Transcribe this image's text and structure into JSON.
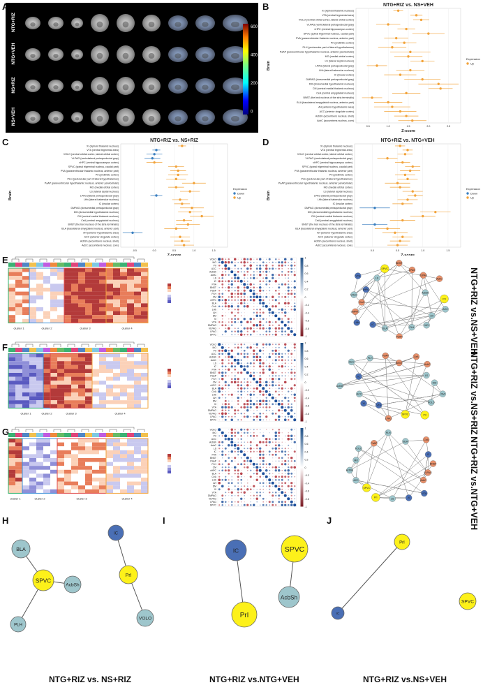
{
  "labels": {
    "A": "A",
    "B": "B",
    "C": "C",
    "D": "D",
    "E": "E",
    "F": "F",
    "G": "G",
    "H": "H",
    "I": "I",
    "J": "J"
  },
  "panelA": {
    "rows": [
      "NTG+RIZ",
      "NTG+VEH",
      "NS+RIZ",
      "NS+VEH"
    ],
    "colorbar_ticks": [
      "600",
      "400",
      "200",
      "0"
    ]
  },
  "forest": {
    "ylabel": "Brain",
    "xlabel": "Z-score",
    "legend_title": "Expression",
    "legend_down": "Down",
    "legend_up": "Up",
    "regions": [
      "XI (xiphoid thalamic nucleus)",
      "VTA (ventral tegmental area)",
      "VOLO (ventral orbital cortex, lateral orbital cortex)",
      "VLPAG (ventrolateral periaqueductal gray)",
      "vHPC (ventral hippocampus cortex)",
      "SPVC (spinal trigeminal nucleus, caudal part)",
      "PVA (paraventricular thalamic nucleus, anterior part)",
      "PrI (prelimbic cortex)",
      "PLH (peduncular part of lateral hypothalamus)",
      "PaAP (paraventricular hypothalamic nucleus, anterior parvicellular)",
      "MO (medial orbital cortex)",
      "LS (lateral septal nucleus)",
      "LPAG (lateral periaqueductal gray)",
      "LHb (lateral habenular nucleus)",
      "IC (insular cortex)",
      "DMPAG (dorsomedial periaqueductal gray)",
      "DM (dorsomedial hypothalamic nucleus)",
      "CM (central medial thalamic nucleus)",
      "CeA (central amygdaloid nucleus)",
      "BNST (the bed nucleus of the stria terminalis)",
      "BLA (basolateral amygdaloid nucleus, anterior part)",
      "AH (anterior hypothalamic area)",
      "ACC (anterior cingulate cortex)",
      "AcbSh (accumbens nucleus, shell)",
      "AcbC (accumbens nucleus, core)"
    ]
  },
  "chart_data": [
    {
      "type": "scatter",
      "panel": "B",
      "title": "NTG+RIZ vs. NS+VEH",
      "xlabel": "Z-score",
      "ylabel": "Brain",
      "xticks": [
        "0.5",
        "1.0",
        "1.5",
        "2.0",
        "2.5"
      ],
      "xlim": [
        0.2,
        2.8
      ],
      "legend_entries": [
        "Up"
      ],
      "z": [
        1.25,
        1.7,
        1.82,
        1.0,
        1.45,
        2.0,
        1.2,
        1.4,
        1.1,
        1.55,
        1.5,
        1.85,
        0.72,
        1.55,
        1.3,
        1.85,
        2.25,
        2.3,
        1.45,
        0.6,
        1.0,
        1.1,
        1.3,
        1.45,
        1.6
      ],
      "err": [
        0.12,
        0.15,
        0.2,
        0.3,
        0.22,
        0.4,
        0.3,
        0.3,
        0.35,
        0.5,
        0.35,
        0.3,
        0.25,
        0.35,
        0.4,
        0.45,
        0.5,
        0.3,
        0.35,
        0.25,
        0.35,
        0.45,
        0.4,
        0.3,
        0.35
      ],
      "direction": [
        "up",
        "up",
        "up",
        "up",
        "up",
        "up",
        "up",
        "up",
        "up",
        "up",
        "up",
        "up",
        "up",
        "up",
        "up",
        "up",
        "up",
        "up",
        "up",
        "up",
        "up",
        "up",
        "up",
        "up",
        "up"
      ]
    },
    {
      "type": "scatter",
      "panel": "C",
      "title": "NTG+RIZ vs. NS+RIZ",
      "xlabel": "Z-score",
      "ylabel": "Brain",
      "xticks": [
        "-0.5",
        "0.0",
        "0.5",
        "1.0",
        "1.5"
      ],
      "xlim": [
        -0.85,
        1.85
      ],
      "legend_entries": [
        "Down",
        "Up"
      ],
      "z": [
        0.7,
        0.05,
        0.0,
        -0.05,
        0.0,
        0.55,
        0.6,
        0.6,
        0.55,
        1.0,
        0.55,
        0.9,
        0.05,
        0.65,
        0.7,
        0.95,
        0.9,
        1.2,
        0.75,
        0.85,
        0.55,
        -0.55,
        0.65,
        0.7,
        0.75
      ],
      "err": [
        0.1,
        0.1,
        0.2,
        0.2,
        0.2,
        0.2,
        0.2,
        0.25,
        0.25,
        0.3,
        0.2,
        0.25,
        0.15,
        0.2,
        0.2,
        0.3,
        0.3,
        0.3,
        0.2,
        0.3,
        0.3,
        0.25,
        0.25,
        0.2,
        0.25
      ],
      "direction": [
        "up",
        "down",
        "down",
        "down",
        "up",
        "up",
        "up",
        "up",
        "up",
        "up",
        "up",
        "up",
        "down",
        "up",
        "up",
        "up",
        "up",
        "up",
        "up",
        "up",
        "up",
        "down",
        "up",
        "up",
        "up"
      ]
    },
    {
      "type": "scatter",
      "panel": "D",
      "title": "NTG+RIZ vs. NTG+VEH",
      "xlabel": "Z-score",
      "ylabel": "Brain",
      "xticks": [
        "0.0",
        "0.5",
        "1.0",
        "1.5"
      ],
      "xlim": [
        -0.35,
        1.75
      ],
      "legend_entries": [
        "Down",
        "Up"
      ],
      "z": [
        0.55,
        0.7,
        0.65,
        0.3,
        0.6,
        0.8,
        0.75,
        0.65,
        0.7,
        0.5,
        0.55,
        0.8,
        0.85,
        0.7,
        0.6,
        0.05,
        1.25,
        1.0,
        0.6,
        0.05,
        0.3,
        0.45,
        0.6,
        0.55,
        0.5
      ],
      "err": [
        0.1,
        0.1,
        0.15,
        0.2,
        0.15,
        0.15,
        0.2,
        0.2,
        0.2,
        0.25,
        0.2,
        0.2,
        0.15,
        0.2,
        0.2,
        0.3,
        0.3,
        0.25,
        0.25,
        0.25,
        0.25,
        0.25,
        0.2,
        0.2,
        0.2
      ],
      "direction": [
        "up",
        "up",
        "up",
        "up",
        "up",
        "up",
        "up",
        "up",
        "up",
        "up",
        "up",
        "up",
        "up",
        "up",
        "up",
        "down",
        "up",
        "up",
        "up",
        "down",
        "up",
        "up",
        "up",
        "up",
        "up"
      ]
    }
  ],
  "heatmaps": {
    "E": {
      "clusters": [
        "cluster 1",
        "cluster 2",
        "cluster 3",
        "cluster 4"
      ]
    },
    "F": {
      "clusters": [
        "cluster 1",
        "cluster 2",
        "cluster 3",
        "cluster 4"
      ]
    },
    "G": {
      "clusters": [
        "cluster 1",
        "cluster 2",
        "cluster 3",
        "cluster 4"
      ]
    }
  },
  "corr": {
    "regions": [
      "VOLO",
      "MO",
      "PrI",
      "ACC",
      "AcbSh",
      "AcbC",
      "LS",
      "IC",
      "PVA",
      "BNST",
      "PaAP",
      "PLH",
      "CM",
      "vHPC",
      "BLA",
      "CeA",
      "LHb",
      "AH",
      "DM",
      "XI",
      "VTA",
      "DMPAG",
      "VLPAG",
      "LPAG",
      "SPVC"
    ],
    "ticks": [
      "1",
      "0.8",
      "0.6",
      "0.4",
      "0.2",
      "0",
      "-0.2",
      "-0.4",
      "-0.6",
      "-0.8",
      "-1"
    ]
  },
  "side_titles": {
    "E": "NTG+RIZ vs.NS+VEH",
    "F": "NTG+RIZ vs.NS+RIZ",
    "G": "NTG+RIZ vs.NTG+VEH"
  },
  "networks": {
    "E": [
      "PrI",
      "ACC",
      "AH",
      "MO",
      "PLH",
      "PaAP",
      "BLA",
      "IC",
      "LHb",
      "DMPAG",
      "CeA",
      "VOLO",
      "vHPC",
      "VTA",
      "LS",
      "SPVC",
      "BNST",
      "LPAG",
      "VLPAG",
      "AcbC",
      "AcbSh"
    ],
    "F": [
      "PrI",
      "SPVC",
      "LPAG",
      "VTA",
      "XI",
      "ACC",
      "AcbSh",
      "IC",
      "BLA",
      "PLH",
      "PaAP",
      "BNST",
      "CeA",
      "AcbC",
      "LS",
      "MO",
      "DM",
      "VOLO"
    ],
    "G": [
      "PrI",
      "SPVC",
      "ACC",
      "AcbSh",
      "MO",
      "VOLO",
      "PaAP",
      "PLH",
      "BLA",
      "CeA",
      "IC",
      "BNST",
      "VLPAG",
      "AcbC",
      "VTA",
      "XI",
      "LS"
    ]
  },
  "bottom": {
    "H": {
      "caption": "NTG+RIZ vs. NS+RIZ",
      "nodes": [
        "BLA",
        "SPVC",
        "AcbSh",
        "PLH",
        "IC",
        "PrI",
        "VOLO"
      ]
    },
    "I": {
      "caption": "NTG+RIZ vs.NTG+VEH",
      "nodes": [
        "IC",
        "PrI",
        "SPVC",
        "AcbSh"
      ]
    },
    "J": {
      "caption": "NTG+RIZ vs.NS+VEH",
      "nodes": [
        "PrI",
        "IC",
        "SPVC"
      ]
    }
  },
  "colors": {
    "up": "#f2a33a",
    "down": "#3a7fc0",
    "node_yellow": "#fdf11a",
    "node_blue": "#4a6fb5",
    "node_teal": "#9ec6cc",
    "node_salmon": "#e8906a"
  }
}
